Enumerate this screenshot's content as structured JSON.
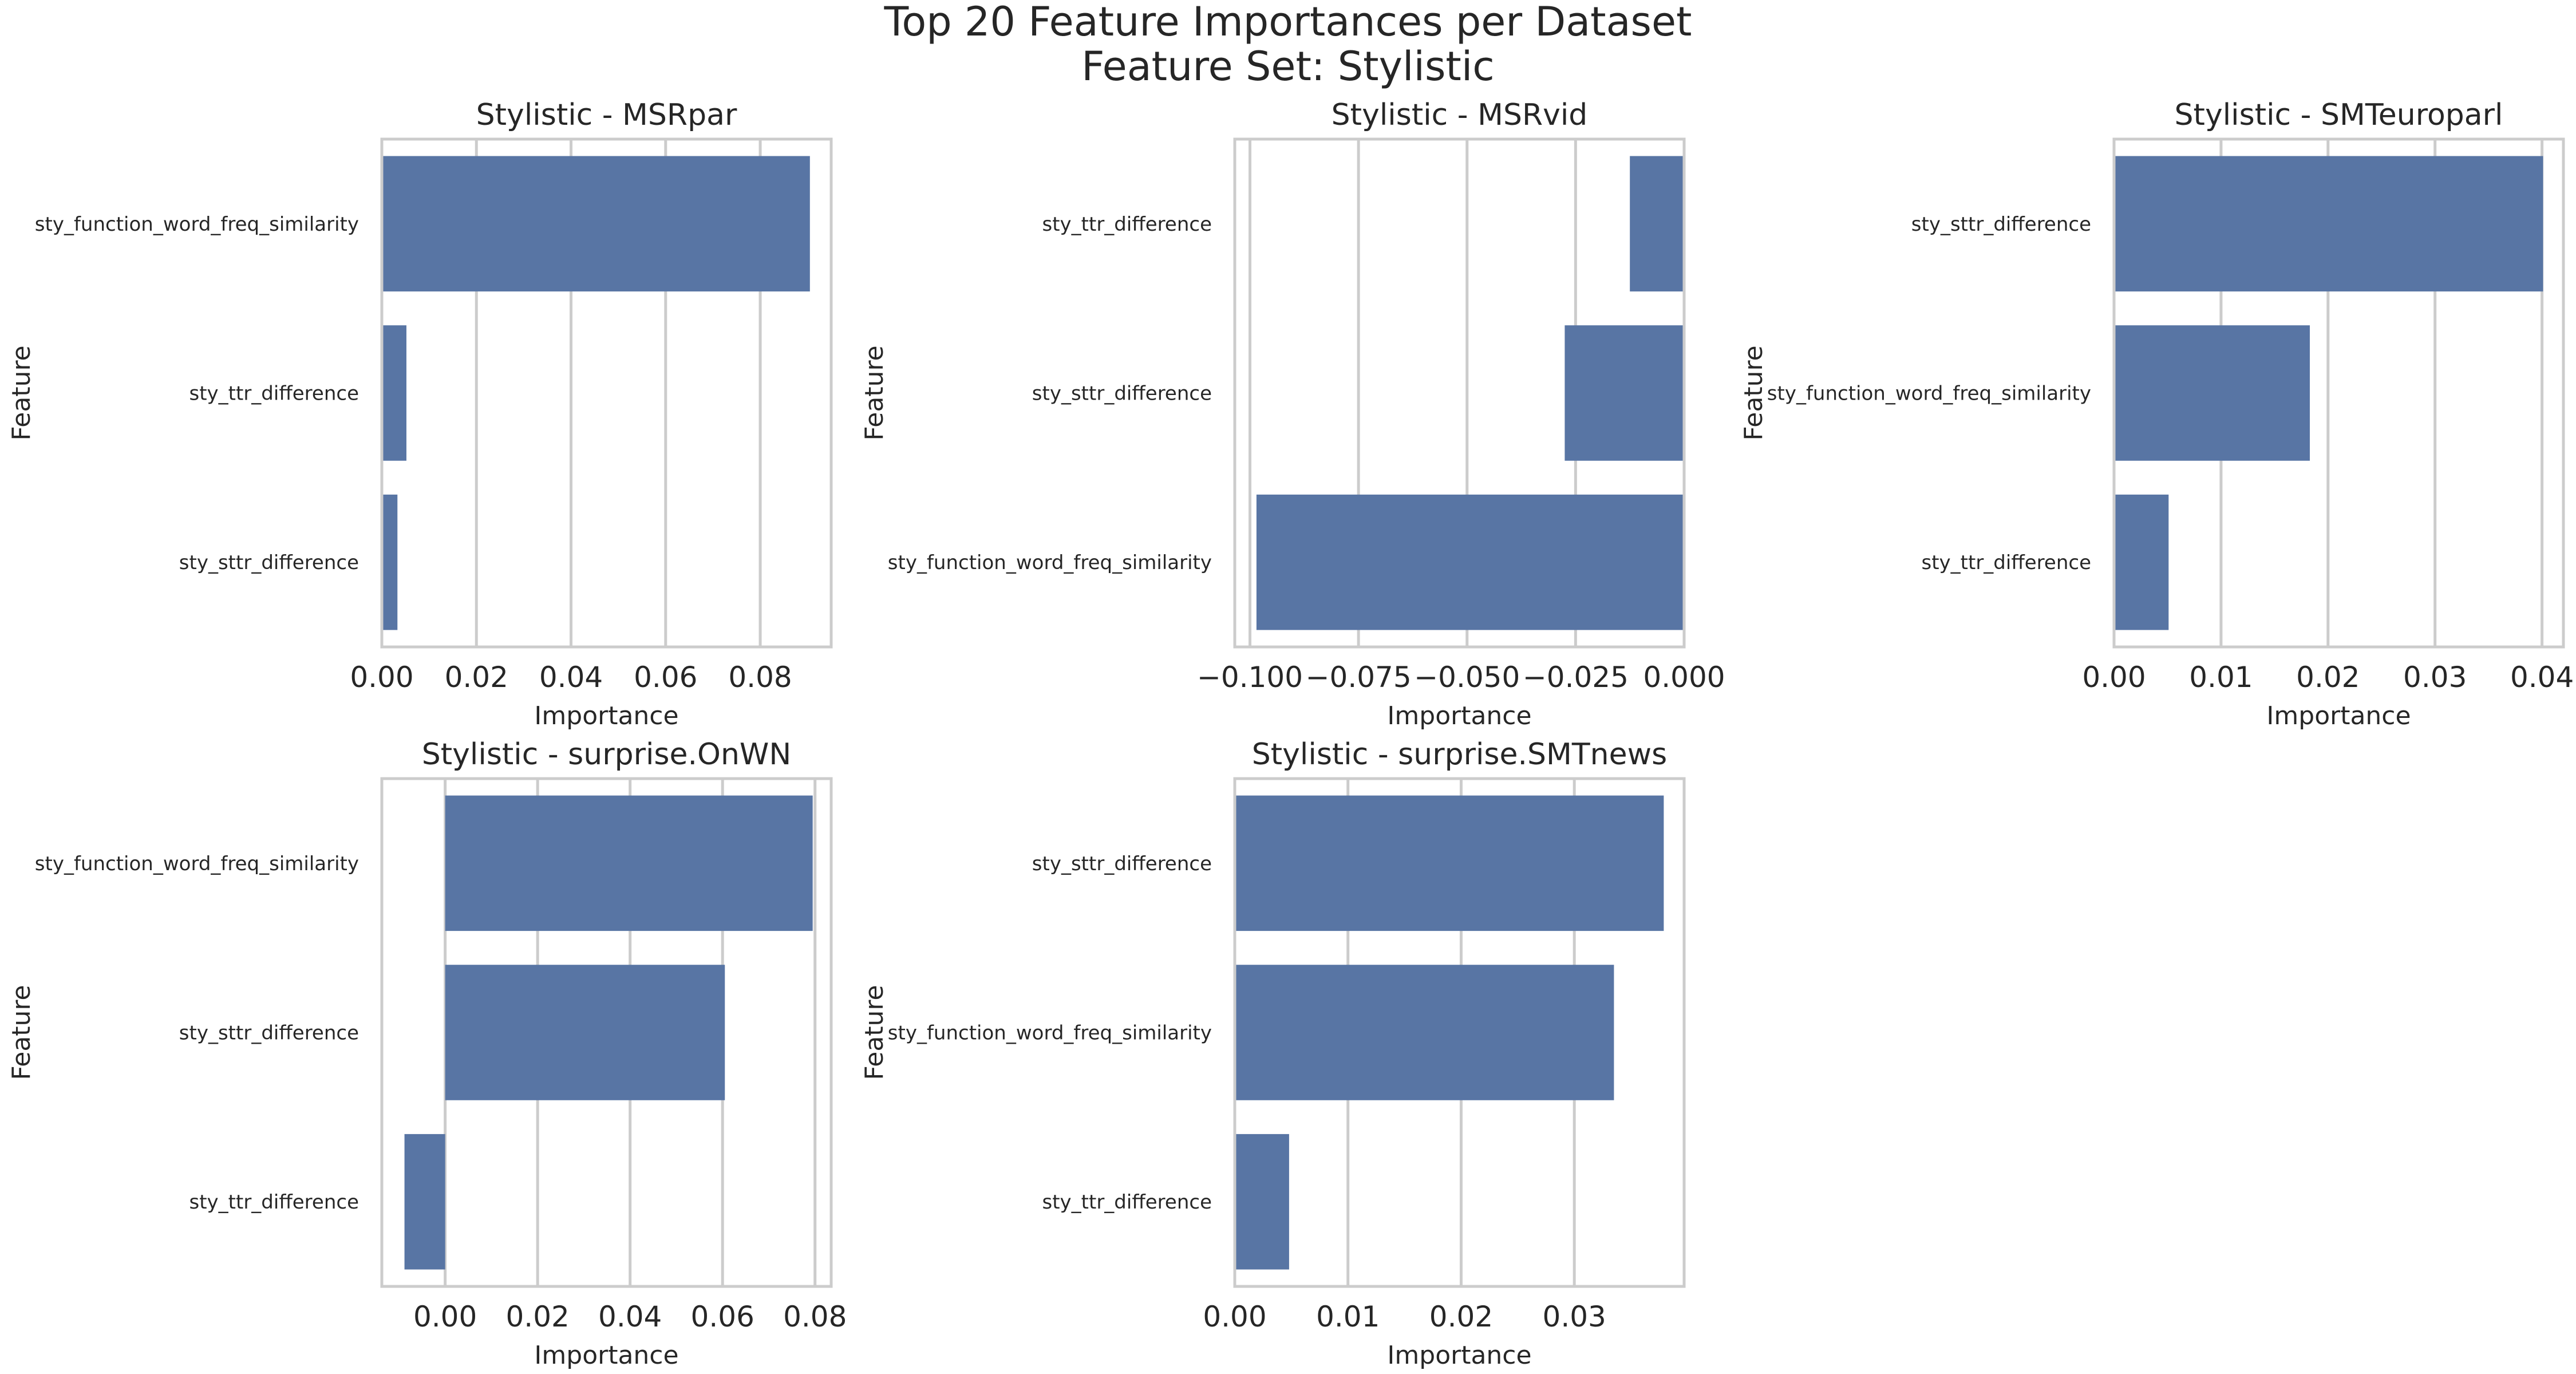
{
  "figure": {
    "title_line1": "Top 20 Feature Importances per Dataset",
    "title_line2": "Feature Set: Stylistic"
  },
  "colors": {
    "bar": "#5875a4",
    "grid": "#cccccc",
    "text": "#262626"
  },
  "chart_data": [
    {
      "type": "bar",
      "orientation": "horizontal",
      "title": "Stylistic - MSRpar",
      "xlabel": "Importance",
      "ylabel": "Feature",
      "categories": [
        "sty_function_word_freq_similarity",
        "sty_ttr_difference",
        "sty_sttr_difference"
      ],
      "values": [
        0.0905,
        0.0052,
        0.0033
      ],
      "xlim": [
        0,
        0.095
      ],
      "xticks": [
        0,
        0.02,
        0.04,
        0.06,
        0.08
      ],
      "xtick_labels": [
        "0.00",
        "0.02",
        "0.04",
        "0.06",
        "0.08"
      ],
      "grid": true
    },
    {
      "type": "bar",
      "orientation": "horizontal",
      "title": "Stylistic - MSRvid",
      "xlabel": "Importance",
      "ylabel": "Feature",
      "categories": [
        "sty_ttr_difference",
        "sty_sttr_difference",
        "sty_function_word_freq_similarity"
      ],
      "values": [
        -0.0125,
        -0.0275,
        -0.0985
      ],
      "xlim": [
        -0.1035,
        0
      ],
      "xticks": [
        -0.1,
        -0.075,
        -0.05,
        -0.025,
        0
      ],
      "xtick_labels": [
        "−0.100",
        "−0.075",
        "−0.050",
        "−0.025",
        "0.000"
      ],
      "grid": true
    },
    {
      "type": "bar",
      "orientation": "horizontal",
      "title": "Stylistic - SMTeuroparl",
      "xlabel": "Importance",
      "ylabel": "Feature",
      "categories": [
        "sty_sttr_difference",
        "sty_function_word_freq_similarity",
        "sty_ttr_difference"
      ],
      "values": [
        0.0401,
        0.0183,
        0.0051
      ],
      "xlim": [
        0,
        0.042
      ],
      "xticks": [
        0,
        0.01,
        0.02,
        0.03,
        0.04
      ],
      "xtick_labels": [
        "0.00",
        "0.01",
        "0.02",
        "0.03",
        "0.04"
      ],
      "grid": true
    },
    {
      "type": "bar",
      "orientation": "horizontal",
      "title": "Stylistic - surprise.OnWN",
      "xlabel": "Importance",
      "ylabel": "Feature",
      "categories": [
        "sty_function_word_freq_similarity",
        "sty_sttr_difference",
        "sty_ttr_difference"
      ],
      "values": [
        0.0795,
        0.0605,
        -0.0088
      ],
      "xlim": [
        -0.0137,
        0.0835
      ],
      "xticks": [
        0,
        0.02,
        0.04,
        0.06,
        0.08
      ],
      "xtick_labels": [
        "0.00",
        "0.02",
        "0.04",
        "0.06",
        "0.08"
      ],
      "grid": true
    },
    {
      "type": "bar",
      "orientation": "horizontal",
      "title": "Stylistic - surprise.SMTnews",
      "xlabel": "Importance",
      "ylabel": "Feature",
      "categories": [
        "sty_sttr_difference",
        "sty_function_word_freq_similarity",
        "sty_ttr_difference"
      ],
      "values": [
        0.0379,
        0.0335,
        0.0048
      ],
      "xlim": [
        0,
        0.0397
      ],
      "xticks": [
        0,
        0.01,
        0.02,
        0.03
      ],
      "xtick_labels": [
        "0.00",
        "0.01",
        "0.02",
        "0.03"
      ],
      "grid": true
    }
  ]
}
